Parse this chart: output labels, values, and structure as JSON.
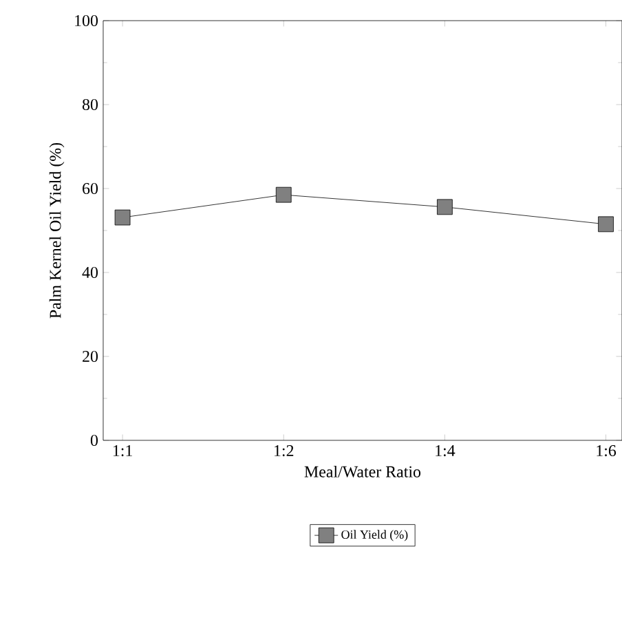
{
  "chart_data": {
    "type": "line",
    "xlabel": "Meal/Water Ratio",
    "ylabel": "Palm Kernel Oil Yield (%)",
    "categories": [
      "1:1",
      "1:2",
      "1:4",
      "1:6"
    ],
    "series": [
      {
        "name": "Oil Yield (%)",
        "color": "#808080",
        "values": [
          53.1,
          58.5,
          55.6,
          51.5
        ]
      }
    ],
    "ylim": [
      0,
      100
    ],
    "yticks": [
      0,
      20,
      40,
      60,
      80,
      100
    ],
    "marker": "square",
    "line_style": "solid",
    "legend": "bottom",
    "grid": false
  }
}
